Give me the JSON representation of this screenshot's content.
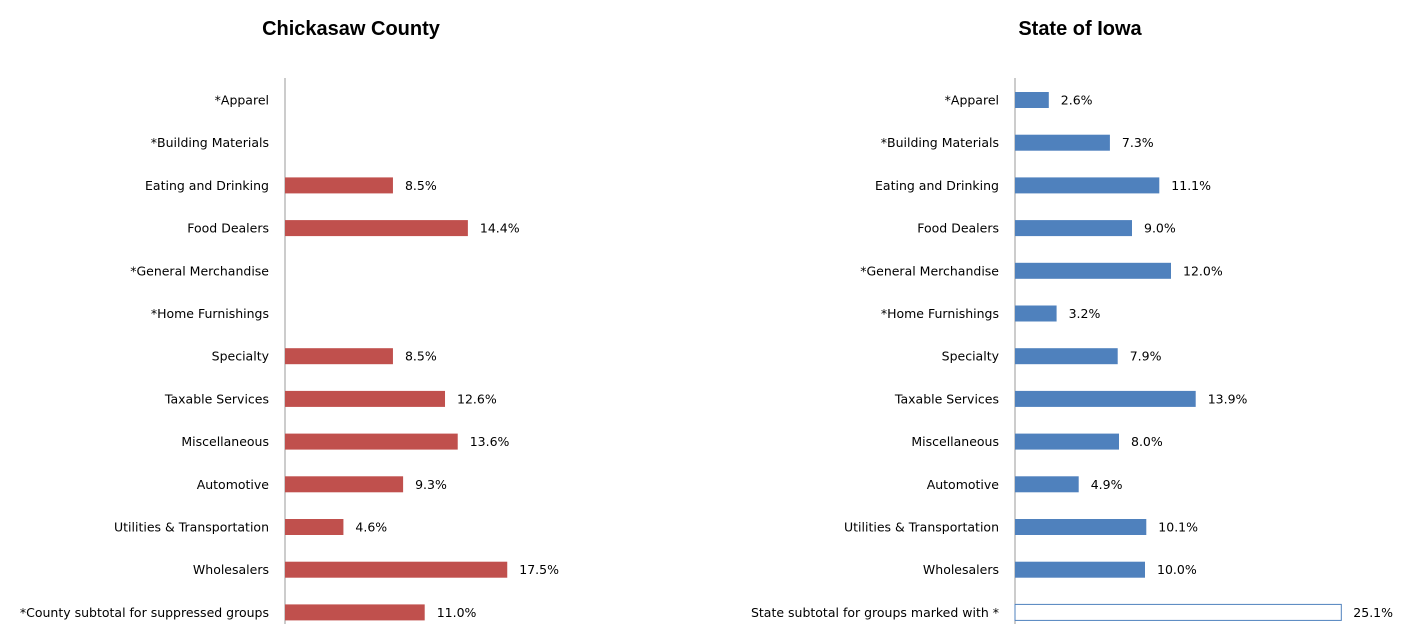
{
  "chart_data": [
    {
      "type": "bar",
      "orientation": "horizontal",
      "title": "Chickasaw County",
      "xlabel": "",
      "ylabel": "",
      "grid": false,
      "xlim": [
        0,
        25.1
      ],
      "bar_color": "#c0504d",
      "categories": [
        "*Apparel",
        "*Building Materials",
        "Eating and Drinking",
        "Food Dealers",
        "*General Merchandise",
        "*Home Furnishings",
        "Specialty",
        "Taxable Services",
        "Miscellaneous",
        "Automotive",
        "Utilities & Transportation",
        "Wholesalers",
        "*County subtotal for suppressed groups"
      ],
      "values": [
        null,
        null,
        8.5,
        14.4,
        null,
        null,
        8.5,
        12.6,
        13.6,
        9.3,
        4.6,
        17.5,
        11.0
      ],
      "labels": [
        "",
        "",
        "8.5%",
        "14.4%",
        "",
        "",
        "8.5%",
        "12.6%",
        "13.6%",
        "9.3%",
        "4.6%",
        "17.5%",
        "11.0%"
      ]
    },
    {
      "type": "bar",
      "orientation": "horizontal",
      "title": "State of Iowa",
      "xlabel": "",
      "ylabel": "",
      "grid": false,
      "xlim": [
        0,
        25.1
      ],
      "bar_color": "#4f81bd",
      "subtotal_style": "outline",
      "categories": [
        "*Apparel",
        "*Building Materials",
        "Eating and Drinking",
        "Food Dealers",
        "*General Merchandise",
        "*Home Furnishings",
        "Specialty",
        "Taxable Services",
        "Miscellaneous",
        "Automotive",
        "Utilities & Transportation",
        "Wholesalers",
        "State subtotal for groups marked with *"
      ],
      "values": [
        2.6,
        7.3,
        11.1,
        9.0,
        12.0,
        3.2,
        7.9,
        13.9,
        8.0,
        4.9,
        10.1,
        10.0,
        25.1
      ],
      "labels": [
        "2.6%",
        "7.3%",
        "11.1%",
        "9.0%",
        "12.0%",
        "3.2%",
        "7.9%",
        "13.9%",
        "8.0%",
        "4.9%",
        "10.1%",
        "10.0%",
        "25.1%"
      ]
    }
  ]
}
